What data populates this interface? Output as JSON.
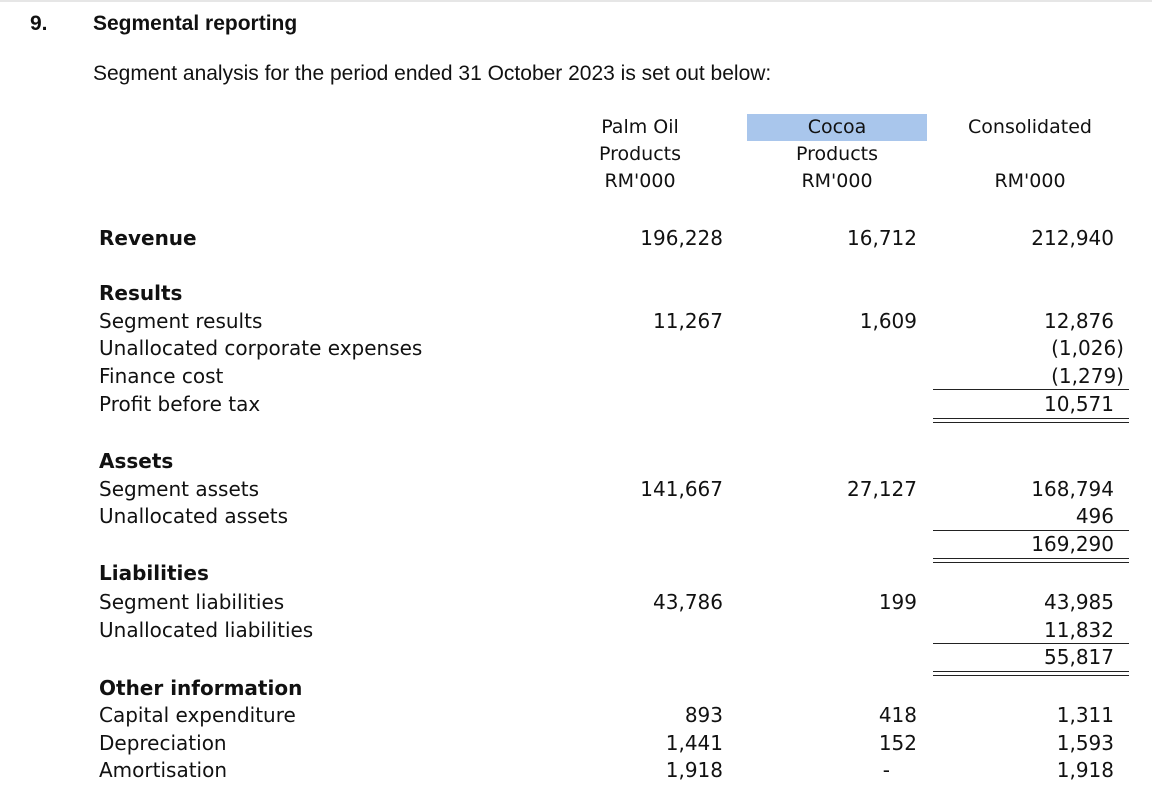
{
  "section": {
    "number": "9.",
    "title": "Segmental reporting",
    "intro": "Segment analysis for the period ended 31 October 2023 is set out below:"
  },
  "headers": {
    "palm": [
      "Palm Oil",
      "Products",
      "RM'000"
    ],
    "cocoa": [
      "Cocoa",
      "Products",
      "RM'000"
    ],
    "consolidated": [
      "Consolidated",
      "RM'000"
    ]
  },
  "revenue": {
    "label": "Revenue",
    "palm": "196,228",
    "cocoa": "16,712",
    "consolidated": "212,940"
  },
  "results": {
    "heading": "Results",
    "segment_results": {
      "label": "Segment results",
      "palm": "11,267",
      "cocoa": "1,609",
      "consolidated": "12,876"
    },
    "unallocated_corporate": {
      "label": "Unallocated corporate expenses",
      "consolidated": "(1,026)"
    },
    "finance_cost": {
      "label": "Finance cost",
      "consolidated": "(1,279)"
    },
    "profit_before_tax": {
      "label": "Profit before tax",
      "consolidated": "10,571"
    }
  },
  "assets": {
    "heading": "Assets",
    "segment_assets": {
      "label": "Segment assets",
      "palm": "141,667",
      "cocoa": "27,127",
      "consolidated": "168,794"
    },
    "unallocated_assets": {
      "label": "Unallocated assets",
      "consolidated": "496"
    },
    "total": "169,290"
  },
  "liabilities": {
    "heading": "Liabilities",
    "segment_liabilities": {
      "label": "Segment liabilities",
      "palm": "43,786",
      "cocoa": "199",
      "consolidated": "43,985"
    },
    "unallocated_liabilities": {
      "label": "Unallocated liabilities",
      "consolidated": "11,832"
    },
    "total": "55,817"
  },
  "other": {
    "heading": "Other information",
    "capex": {
      "label": "Capital expenditure",
      "palm": "893",
      "cocoa": "418",
      "consolidated": "1,311"
    },
    "depreciation": {
      "label": "Depreciation",
      "palm": "1,441",
      "cocoa": "152",
      "consolidated": "1,593"
    },
    "amortisation": {
      "label": "Amortisation",
      "palm": "1,918",
      "cocoa": "-",
      "consolidated": "1,918"
    }
  }
}
